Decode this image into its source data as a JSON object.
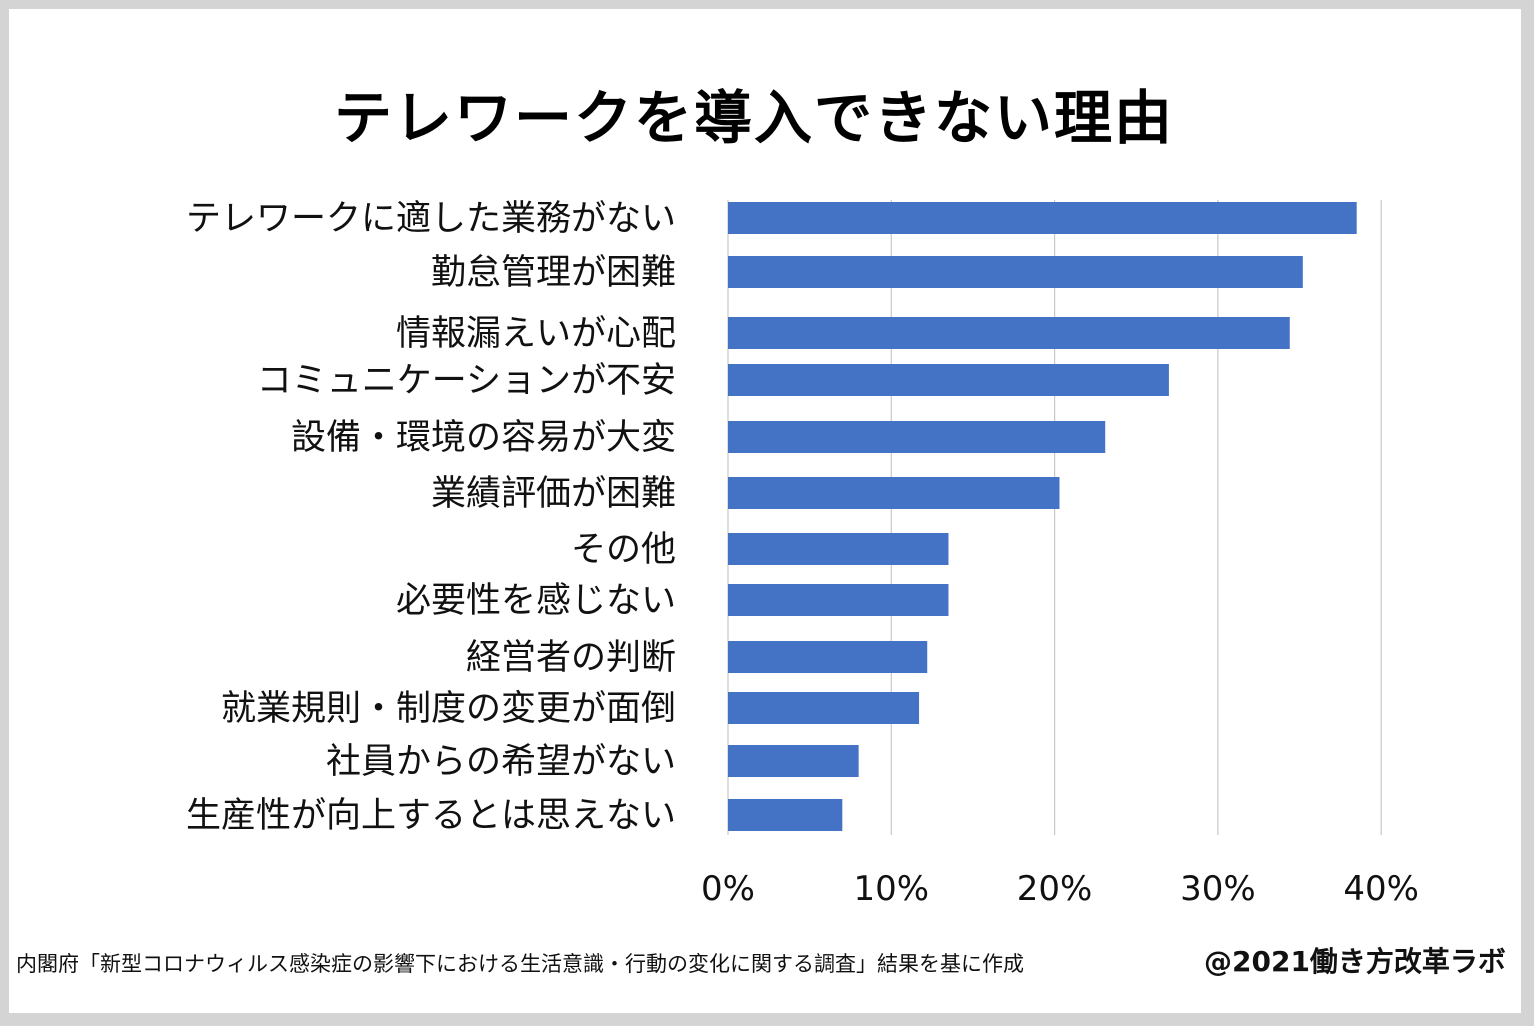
{
  "title": "テレワークを導入できない理由",
  "footer": {
    "source": "内閣府「新型コロナウィルス感染症の影響下における生活意識・行動の変化に関する調査」結果を基に作成",
    "credit": "@2021働き方改革ラボ"
  },
  "chart_data": {
    "type": "bar",
    "orientation": "horizontal",
    "title": "テレワークを導入できない理由",
    "categories": [
      "テレワークに適した業務がない",
      "勤怠管理が困難",
      "情報漏えいが心配",
      "コミュニケーションが不安",
      "設備・環境の容易が大変",
      "業績評価が困難",
      "その他",
      "必要性を感じない",
      "経営者の判断",
      "就業規則・制度の変更が面倒",
      "社員からの希望がない",
      "生産性が向上するとは思えない"
    ],
    "values": [
      38.5,
      35.2,
      34.4,
      27.0,
      23.1,
      20.3,
      13.5,
      13.5,
      12.2,
      11.7,
      8.0,
      7.0
    ],
    "unit": "%",
    "xlim": [
      0,
      40
    ],
    "xticks": [
      "0%",
      "10%",
      "20%",
      "30%",
      "40%"
    ],
    "grid": true,
    "bar_color": "#4472C4",
    "grid_color": "#c8c8c8"
  }
}
